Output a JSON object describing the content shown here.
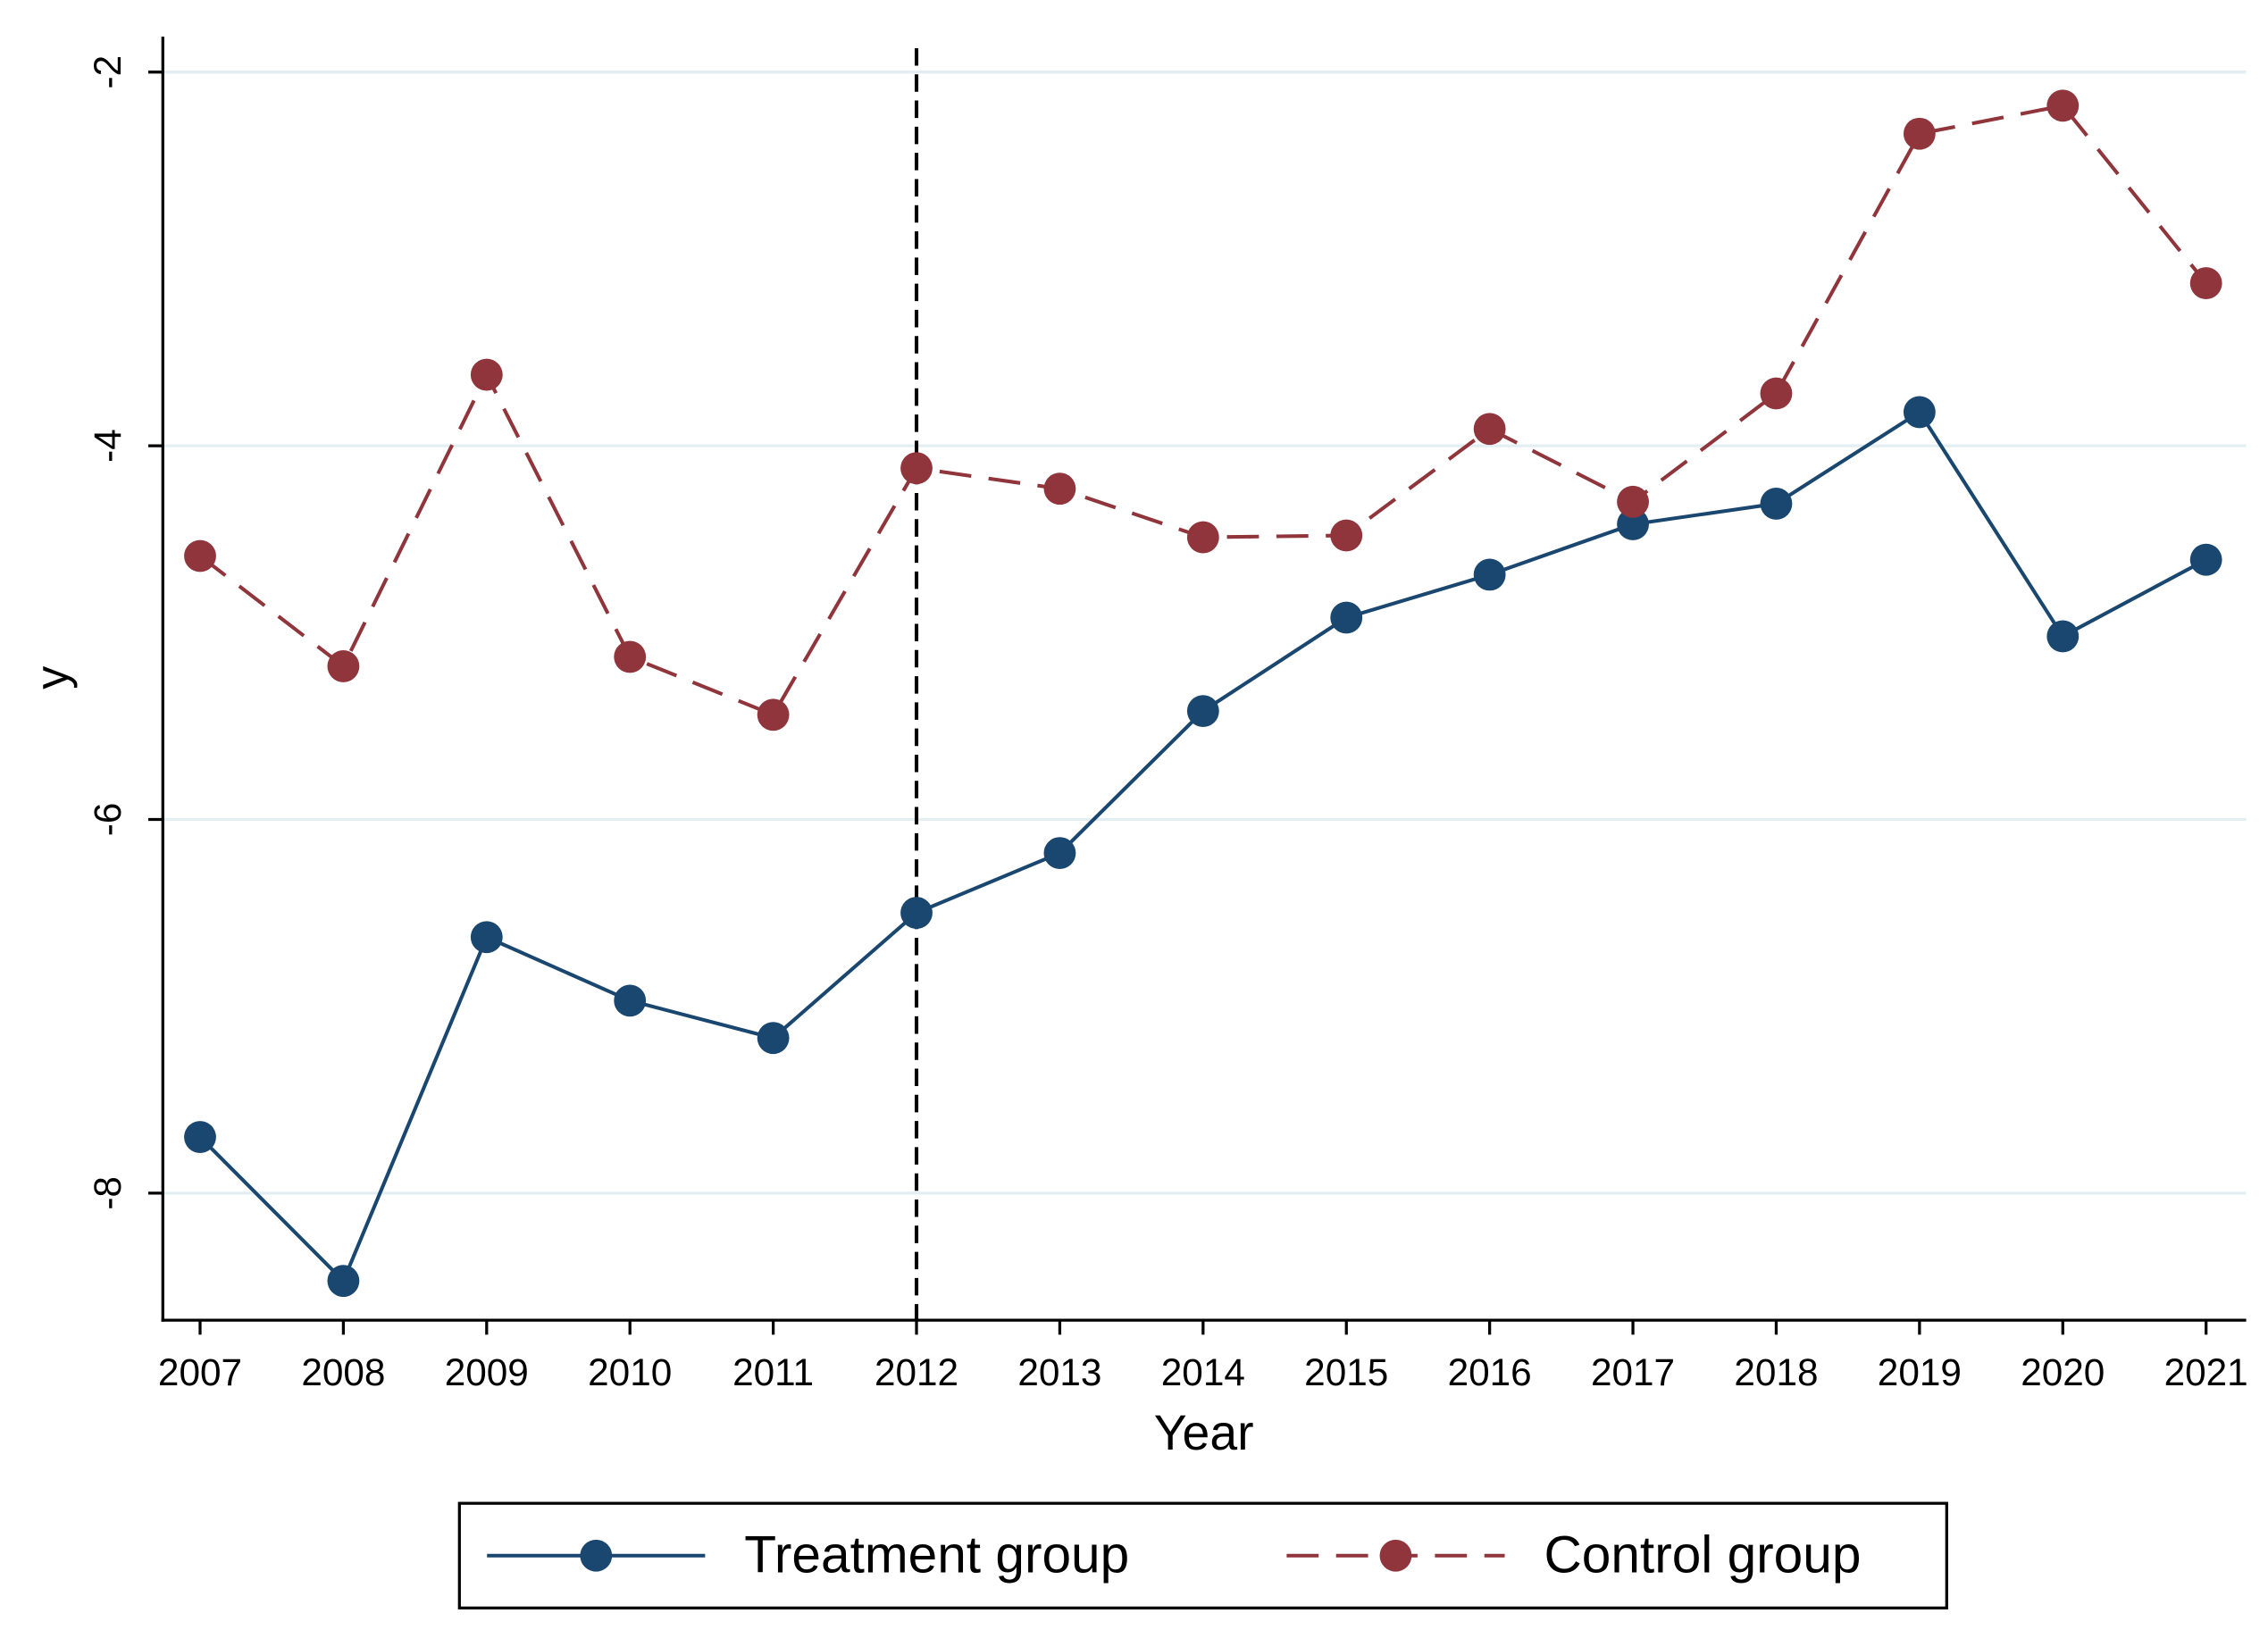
{
  "chart_data": {
    "type": "line",
    "x_label": "Year",
    "y_label": "y",
    "x": [
      2007,
      2008,
      2009,
      2010,
      2011,
      2012,
      2013,
      2014,
      2015,
      2016,
      2017,
      2018,
      2019,
      2020,
      2021
    ],
    "series": [
      {
        "name": "Treatment group",
        "color": "#1a476f",
        "line_style": "solid",
        "values": [
          -7.7,
          -8.47,
          -6.63,
          -6.97,
          -7.17,
          -6.5,
          -6.18,
          -5.42,
          -4.92,
          -4.69,
          -4.42,
          -4.31,
          -3.82,
          -5.02,
          -4.61
        ]
      },
      {
        "name": "Control group",
        "color": "#90353b",
        "line_style": "dashed",
        "values": [
          -4.59,
          -5.18,
          -3.62,
          -5.13,
          -5.44,
          -4.12,
          -4.23,
          -4.49,
          -4.48,
          -3.91,
          -4.3,
          -3.72,
          -2.33,
          -2.18,
          -3.13
        ]
      }
    ],
    "xlim": [
      2006.74,
      2021.28
    ],
    "ylim": [
      -8.68,
      -1.81
    ],
    "xticks": [
      2007,
      2008,
      2009,
      2010,
      2011,
      2012,
      2013,
      2014,
      2015,
      2016,
      2017,
      2018,
      2019,
      2020,
      2021
    ],
    "yticks": [
      -8,
      -6,
      -4,
      -2
    ],
    "grid": true,
    "vline": 2012,
    "legend": "bottom"
  }
}
